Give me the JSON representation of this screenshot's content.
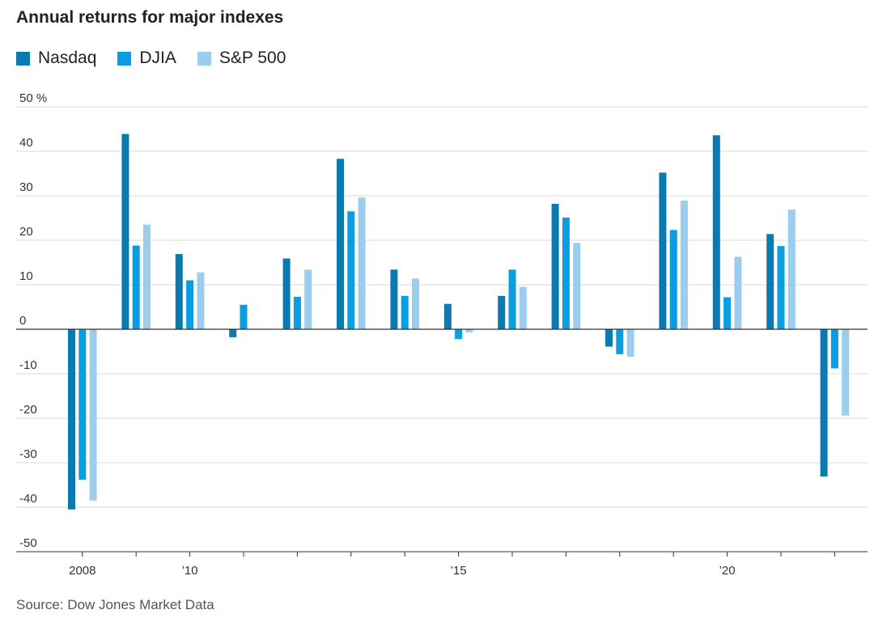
{
  "chart_data": {
    "type": "bar",
    "title": "Annual returns for major indexes",
    "source": "Source: Dow Jones Market Data",
    "xlabel": "",
    "ylabel": "",
    "ylim": [
      -50,
      50
    ],
    "yticks": [
      50,
      40,
      30,
      20,
      10,
      0,
      -10,
      -20,
      -30,
      -40,
      -50
    ],
    "ytick_labels": [
      "50 %",
      "40",
      "30",
      "20",
      "10",
      "0",
      "-10",
      "-20",
      "-30",
      "-40",
      "-50"
    ],
    "categories": [
      "2008",
      "2009",
      "2010",
      "2011",
      "2012",
      "2013",
      "2014",
      "2015",
      "2016",
      "2017",
      "2018",
      "2019",
      "2020",
      "2021",
      "2022"
    ],
    "xtick_labels": [
      "2008",
      "",
      "’10",
      "",
      "",
      "",
      "",
      "’15",
      "",
      "",
      "",
      "",
      "’20",
      "",
      ""
    ],
    "series": [
      {
        "name": "Nasdaq",
        "color": "#0a7ab0",
        "values": [
          -40.5,
          43.9,
          16.9,
          -1.8,
          15.9,
          38.3,
          13.4,
          5.7,
          7.5,
          28.2,
          -3.9,
          35.2,
          43.6,
          21.4,
          -33.1
        ]
      },
      {
        "name": "DJIA",
        "color": "#0a9de0",
        "values": [
          -33.8,
          18.8,
          11.0,
          5.5,
          7.3,
          26.5,
          7.5,
          -2.2,
          13.4,
          25.1,
          -5.6,
          22.3,
          7.2,
          18.7,
          -8.8
        ]
      },
      {
        "name": "S&P 500",
        "color": "#9ccdee",
        "values": [
          -38.5,
          23.5,
          12.8,
          -0.0,
          13.4,
          29.6,
          11.4,
          -0.7,
          9.5,
          19.4,
          -6.2,
          28.9,
          16.3,
          26.9,
          -19.4
        ]
      }
    ],
    "legend": "top-left",
    "grid": true
  }
}
